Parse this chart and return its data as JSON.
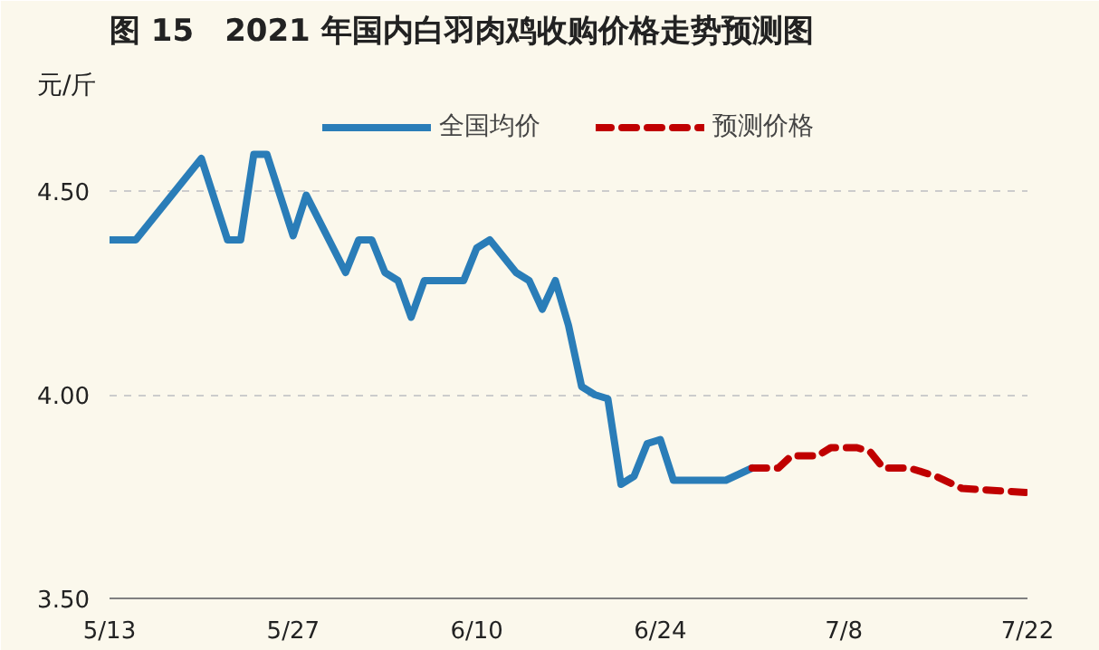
{
  "chart_data": {
    "type": "line",
    "title": "图 15　2021 年国内白羽肉鸡收购价格走势预测图",
    "ylabel": "元/斤",
    "xlim": [
      "2021-05-13",
      "2021-07-22"
    ],
    "xticks": [
      {
        "value": "2021-05-13",
        "label": "5/13"
      },
      {
        "value": "2021-05-27",
        "label": "5/27"
      },
      {
        "value": "2021-06-10",
        "label": "6/10"
      },
      {
        "value": "2021-06-24",
        "label": "6/24"
      },
      {
        "value": "2021-07-08",
        "label": "7/8"
      },
      {
        "value": "2021-07-22",
        "label": "7/22"
      }
    ],
    "ylim": [
      3.5,
      4.7
    ],
    "yticks": [
      {
        "value": 3.5,
        "label": "3.50"
      },
      {
        "value": 4.0,
        "label": "4.00"
      },
      {
        "value": 4.5,
        "label": "4.50"
      }
    ],
    "grid": "y",
    "legend": "top",
    "series": [
      {
        "name": "全国均价",
        "color": "#2a7db8",
        "line_style": "solid",
        "x": [
          "2021-05-13",
          "2021-05-15",
          "2021-05-17",
          "2021-05-18",
          "2021-05-20",
          "2021-05-22",
          "2021-05-23",
          "2021-05-24",
          "2021-05-25",
          "2021-05-27",
          "2021-05-28",
          "2021-05-31",
          "2021-06-01",
          "2021-06-02",
          "2021-06-03",
          "2021-06-04",
          "2021-06-05",
          "2021-06-06",
          "2021-06-09",
          "2021-06-10",
          "2021-06-11",
          "2021-06-13",
          "2021-06-14",
          "2021-06-15",
          "2021-06-16",
          "2021-06-17",
          "2021-06-18",
          "2021-06-19",
          "2021-06-20",
          "2021-06-21",
          "2021-06-22",
          "2021-06-23",
          "2021-06-24",
          "2021-06-25",
          "2021-06-29",
          "2021-07-01"
        ],
        "values": [
          4.38,
          4.38,
          4.46,
          4.5,
          4.58,
          4.38,
          4.38,
          4.59,
          4.59,
          4.39,
          4.49,
          4.3,
          4.38,
          4.38,
          4.3,
          4.28,
          4.19,
          4.28,
          4.28,
          4.36,
          4.38,
          4.3,
          4.28,
          4.21,
          4.28,
          4.17,
          4.02,
          4.0,
          3.99,
          3.78,
          3.8,
          3.88,
          3.89,
          3.79,
          3.79,
          3.82
        ]
      },
      {
        "name": "预测价格",
        "color": "#c00000",
        "line_style": "dashed",
        "x": [
          "2021-07-01",
          "2021-07-03",
          "2021-07-04",
          "2021-07-06",
          "2021-07-07",
          "2021-07-09",
          "2021-07-10",
          "2021-07-11",
          "2021-07-13",
          "2021-07-15",
          "2021-07-17",
          "2021-07-22"
        ],
        "values": [
          3.82,
          3.82,
          3.85,
          3.85,
          3.87,
          3.87,
          3.86,
          3.82,
          3.82,
          3.8,
          3.77,
          3.76
        ]
      }
    ]
  }
}
